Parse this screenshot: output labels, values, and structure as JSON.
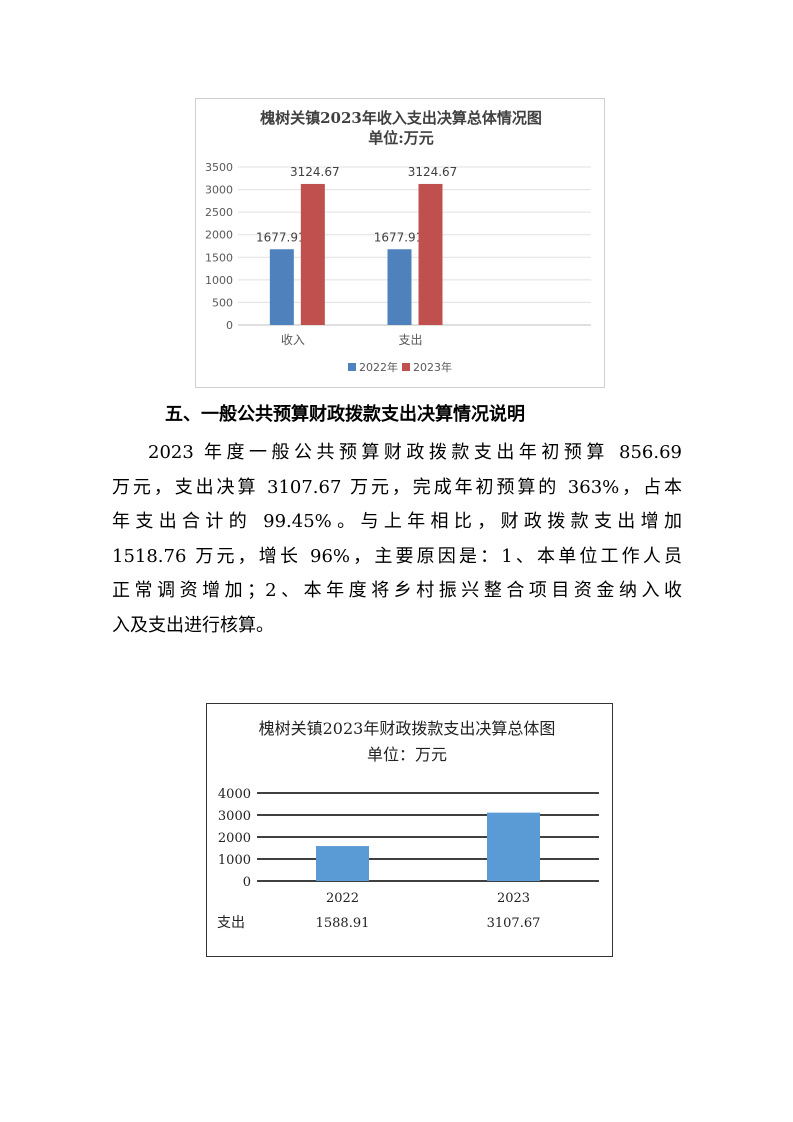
{
  "chart_data": [
    {
      "type": "bar",
      "title": "槐树关镇2023年收入支出决算总体情况图",
      "subtitle": "单位:万元",
      "categories": [
        "收入",
        "支出"
      ],
      "series": [
        {
          "name": "2022年",
          "values": [
            1677.91,
            1677.91
          ],
          "color": "#4f81bd"
        },
        {
          "name": "2023年",
          "values": [
            3124.67,
            3124.67
          ],
          "color": "#c0504d"
        }
      ],
      "data_labels": [
        [
          "1677.91",
          "1677.91"
        ],
        [
          "3124.67",
          "3124.67"
        ]
      ],
      "yticks": [
        "0",
        "500",
        "1000",
        "1500",
        "2000",
        "2500",
        "3000",
        "3500"
      ],
      "ylim": [
        0,
        3500
      ],
      "grid": true,
      "legend": "bottom"
    },
    {
      "type": "bar",
      "title": "槐树关镇2023年财政拨款支出决算总体图",
      "subtitle": "单位：万元",
      "categories": [
        "2022",
        "2023"
      ],
      "series": [
        {
          "values": [
            1588.91,
            3107.67
          ],
          "color": "#5b9bd5"
        }
      ],
      "table_row_label": "支出",
      "table_values": [
        "1588.91",
        "3107.67"
      ],
      "yticks": [
        "0",
        "1000",
        "2000",
        "3000",
        "4000"
      ],
      "ylim": [
        0,
        4000
      ],
      "grid": true,
      "legend": "none"
    }
  ],
  "section": {
    "heading": "五、一般公共预算财政拨款支出决算情况说明",
    "lines": [
      "2023 年度一般公共预算财政拨款支出年初预算 856.69",
      "万元，支出决算 3107.67 万元，完成年初预算的 363%，占本",
      "年支出合计的 99.45%。与上年相比，财政拨款支出增加",
      "1518.76 万元，增长 96%，主要原因是：1、本单位工作人员",
      "正常调资增加；2、本年度将乡村振兴整合项目资金纳入收",
      "入及支出进行核算。"
    ]
  }
}
